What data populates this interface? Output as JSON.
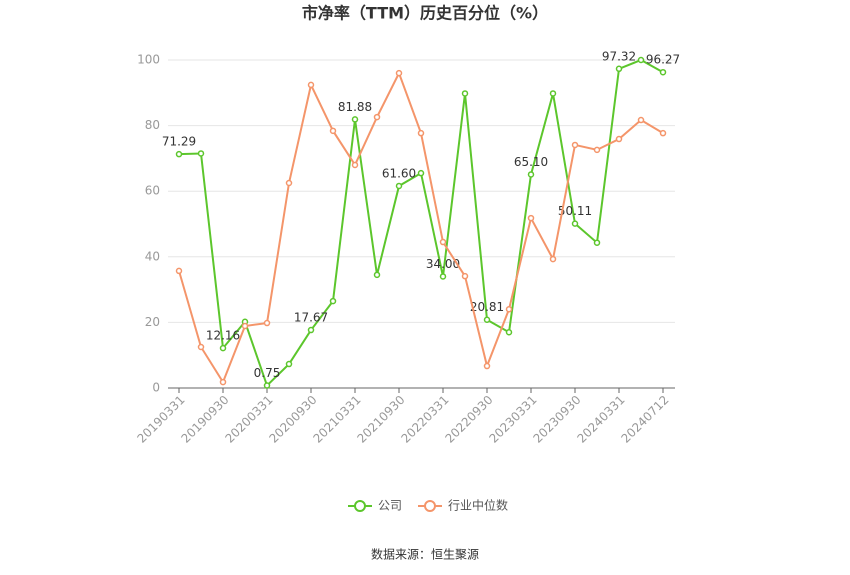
{
  "chart_data": {
    "type": "line",
    "title": "市净率（TTM）历史百分位（%）",
    "source": "数据来源：恒生聚源",
    "categories": [
      "20190331",
      null,
      "20190930",
      null,
      "20200331",
      null,
      "20200930",
      null,
      "20210331",
      null,
      "20210930",
      null,
      "20220331",
      null,
      "20220930",
      null,
      "20230331",
      null,
      "20230930",
      null,
      "20240331",
      null,
      "20240712"
    ],
    "series": [
      {
        "name": "公司",
        "color": "#5cc62c",
        "values": [
          71.29,
          71.5,
          12.16,
          20.2,
          0.75,
          7.3,
          17.67,
          26.5,
          81.88,
          34.5,
          61.6,
          65.5,
          34.0,
          89.8,
          20.81,
          17.0,
          65.1,
          89.8,
          50.11,
          44.3,
          97.32,
          100,
          96.27
        ],
        "value_labels": [
          "71.29",
          null,
          "12.16",
          null,
          "0.75",
          null,
          "17.67",
          null,
          "81.88",
          null,
          "61.60",
          null,
          "34.00",
          null,
          "20.81",
          null,
          "65.10",
          null,
          "50.11",
          null,
          "97.32",
          null,
          "96.27"
        ]
      },
      {
        "name": "行业中位数",
        "color": "#f4956a",
        "values": [
          35.7,
          12.5,
          1.8,
          18.9,
          19.8,
          62.5,
          92.4,
          78.4,
          68,
          82.6,
          96,
          77.7,
          44.5,
          34.1,
          6.7,
          24,
          51.8,
          39.3,
          74.1,
          72.6,
          75.9,
          81.7,
          77.7
        ]
      }
    ],
    "ylim": [
      0,
      100
    ],
    "yticks": [
      0,
      20,
      40,
      60,
      80,
      100
    ],
    "grid": true,
    "legend": "bottom"
  }
}
